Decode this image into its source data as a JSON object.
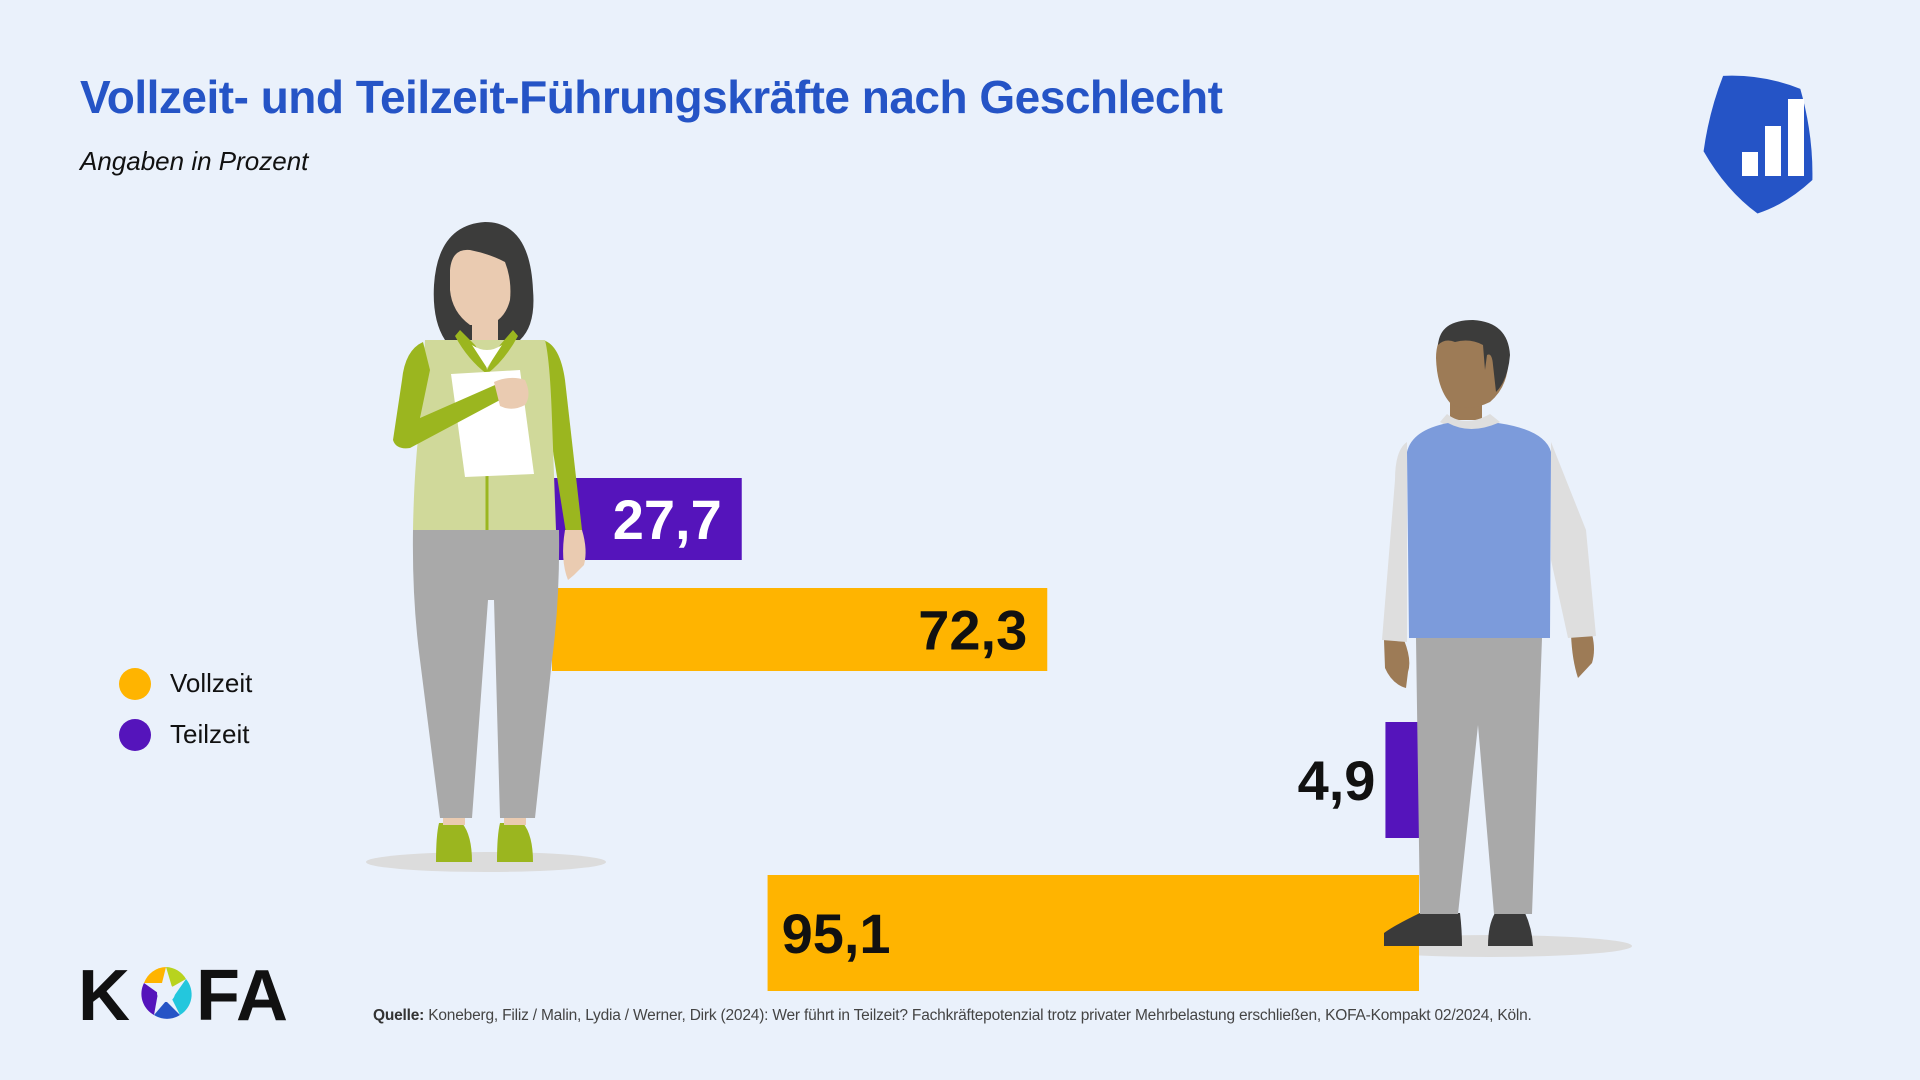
{
  "header": {
    "title": "Vollzeit- und Teilzeit-Führungskräfte nach Geschlecht",
    "subtitle": "Angaben in Prozent",
    "brand_icon": "bar-chart-shield-icon"
  },
  "legend": [
    {
      "label": "Vollzeit",
      "color": "#ffb400"
    },
    {
      "label": "Teilzeit",
      "color": "#5514bb"
    }
  ],
  "footer": {
    "logo_text": "KOFA",
    "source_label": "Quelle:",
    "source_text": " Koneberg, Filiz / Malin, Lydia / Werner, Dirk (2024): Wer führt in Teilzeit? Fachkräftepotenzial trotz privater Mehrbelastung erschließen, KOFA-Kompakt 02/2024, Köln."
  },
  "colors": {
    "accent": "#2554c6",
    "vollzeit": "#ffb400",
    "teilzeit": "#5514bb",
    "background": "#eaf1fb"
  },
  "chart_data": {
    "type": "bar",
    "orientation": "horizontal",
    "title": "Vollzeit- und Teilzeit-Führungskräfte nach Geschlecht",
    "subtitle": "Angaben in Prozent",
    "unit": "%",
    "categories": [
      "Frauen",
      "Männer"
    ],
    "category_illustrations": [
      "woman-figure",
      "man-figure"
    ],
    "series": [
      {
        "name": "Teilzeit",
        "color": "#5514bb",
        "values": [
          27.7,
          4.9
        ],
        "labels": [
          "27,7",
          "4,9"
        ]
      },
      {
        "name": "Vollzeit",
        "color": "#ffb400",
        "values": [
          72.3,
          95.1
        ],
        "labels": [
          "72,3",
          "95,1"
        ]
      }
    ],
    "xlim": [
      0,
      100
    ],
    "legend_position": "left",
    "grid": false,
    "axes_visible": false
  }
}
